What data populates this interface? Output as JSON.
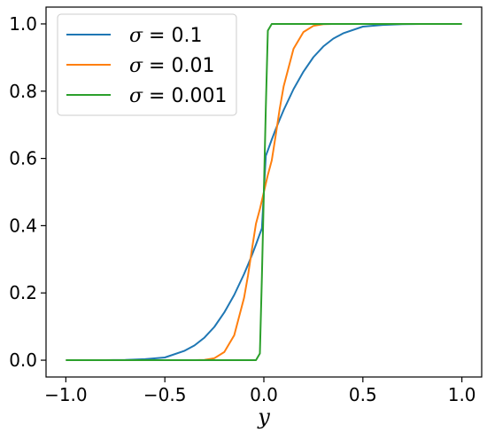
{
  "chart_data": {
    "type": "line",
    "title": "",
    "xlabel": "y",
    "ylabel": "",
    "xlim": [
      -1.1,
      1.1
    ],
    "ylim": [
      -0.05,
      1.05
    ],
    "xticks": [
      -1.0,
      -0.5,
      0.0,
      0.5,
      1.0
    ],
    "yticks": [
      0.0,
      0.2,
      0.4,
      0.6,
      0.8,
      1.0
    ],
    "xtick_labels": [
      "−1.0",
      "−0.5",
      "0.0",
      "0.5",
      "1.0"
    ],
    "ytick_labels": [
      "0.0",
      "0.2",
      "0.4",
      "0.6",
      "0.8",
      "1.0"
    ],
    "grid": false,
    "legend_position": "top-left",
    "x": [
      -1.0,
      -0.9,
      -0.8,
      -0.7,
      -0.6,
      -0.5,
      -0.4,
      -0.35,
      -0.3,
      -0.25,
      -0.2,
      -0.15,
      -0.1,
      -0.08,
      -0.06,
      -0.04,
      -0.02,
      -0.01,
      0.0,
      0.01,
      0.02,
      0.04,
      0.06,
      0.08,
      0.1,
      0.15,
      0.2,
      0.25,
      0.3,
      0.35,
      0.4,
      0.5,
      0.6,
      0.7,
      0.8,
      0.9,
      1.0
    ],
    "series": [
      {
        "name": "σ = 0.1",
        "color": "#1f77b4",
        "values": [
          0.0,
          0.0,
          0.0,
          0.001,
          0.003,
          0.008,
          0.028,
          0.044,
          0.067,
          0.099,
          0.142,
          0.194,
          0.256,
          0.284,
          0.313,
          0.344,
          0.376,
          0.392,
          0.5,
          0.608,
          0.624,
          0.656,
          0.687,
          0.716,
          0.744,
          0.806,
          0.858,
          0.901,
          0.933,
          0.956,
          0.972,
          0.992,
          0.997,
          0.999,
          1.0,
          1.0,
          1.0
        ]
      },
      {
        "name": "σ = 0.01",
        "color": "#ff7f0e",
        "values": [
          0.0,
          0.0,
          0.0,
          0.0,
          0.0,
          0.0,
          0.0,
          0.0,
          0.001,
          0.006,
          0.024,
          0.074,
          0.185,
          0.252,
          0.331,
          0.406,
          0.449,
          0.475,
          0.5,
          0.525,
          0.551,
          0.594,
          0.669,
          0.748,
          0.815,
          0.926,
          0.976,
          0.994,
          0.999,
          1.0,
          1.0,
          1.0,
          1.0,
          1.0,
          1.0,
          1.0,
          1.0
        ]
      },
      {
        "name": "σ = 0.001",
        "color": "#2ca02c",
        "values": [
          0.0,
          0.0,
          0.0,
          0.0,
          0.0,
          0.0,
          0.0,
          0.0,
          0.0,
          0.0,
          0.0,
          0.0,
          0.0,
          0.0,
          0.0,
          0.0,
          0.02,
          0.25,
          0.5,
          0.75,
          0.98,
          1.0,
          1.0,
          1.0,
          1.0,
          1.0,
          1.0,
          1.0,
          1.0,
          1.0,
          1.0,
          1.0,
          1.0,
          1.0,
          1.0,
          1.0,
          1.0
        ]
      }
    ]
  },
  "legend": {
    "items": [
      {
        "symbol": "σ",
        "rest": " = 0.1",
        "color": "#1f77b4"
      },
      {
        "symbol": "σ",
        "rest": " = 0.01",
        "color": "#ff7f0e"
      },
      {
        "symbol": "σ",
        "rest": " = 0.001",
        "color": "#2ca02c"
      }
    ]
  }
}
